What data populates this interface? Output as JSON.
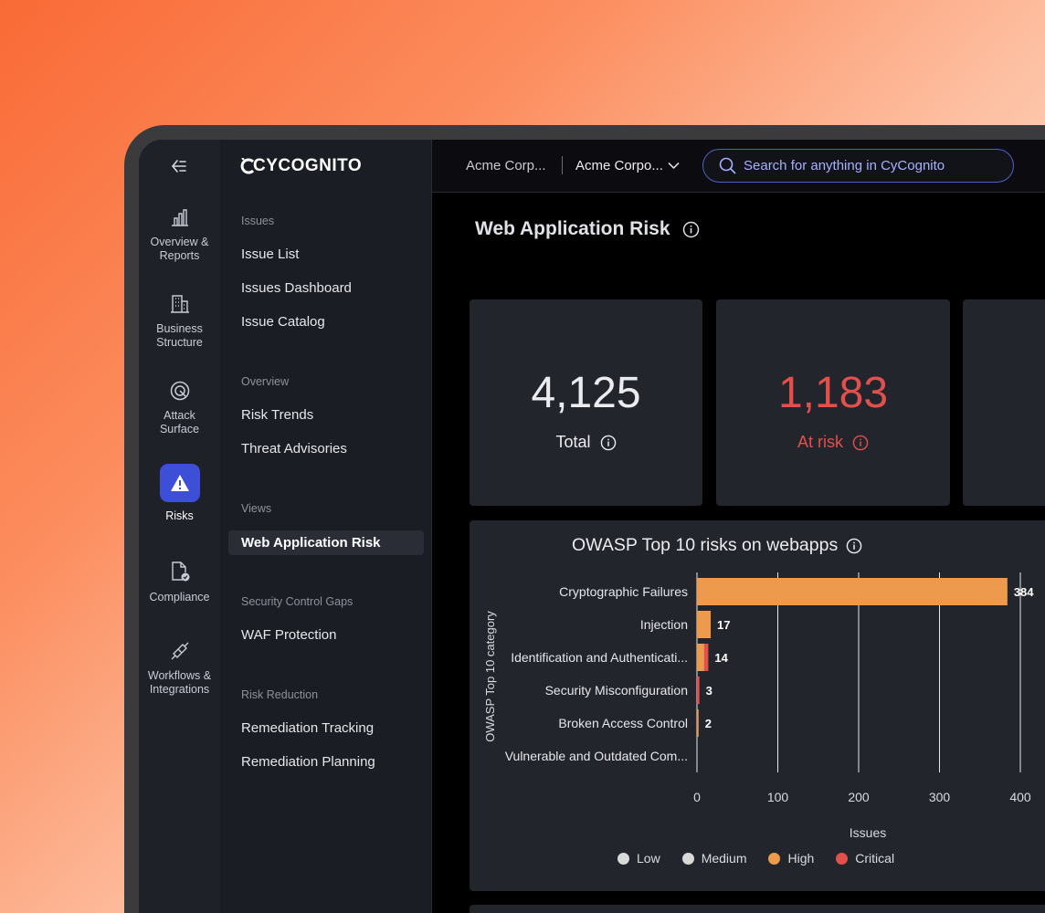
{
  "rail": {
    "items": [
      {
        "label_line1": "Overview &",
        "label_line2": "Reports",
        "icon": "bar-chart-icon"
      },
      {
        "label_line1": "Business",
        "label_line2": "Structure",
        "icon": "building-icon"
      },
      {
        "label_line1": "Attack",
        "label_line2": "Surface",
        "icon": "target-icon"
      },
      {
        "label_line1": "Risks",
        "label_line2": "",
        "icon": "warning-icon"
      },
      {
        "label_line1": "Compliance",
        "label_line2": "",
        "icon": "document-check-icon"
      },
      {
        "label_line1": "Workflows &",
        "label_line2": "Integrations",
        "icon": "plug-icon"
      }
    ]
  },
  "nav": {
    "logo": "CYCOGNITO",
    "sections": [
      {
        "title": "Issues",
        "links": [
          "Issue List",
          "Issues Dashboard",
          "Issue Catalog"
        ]
      },
      {
        "title": "Overview",
        "links": [
          "Risk Trends",
          "Threat Advisories"
        ]
      },
      {
        "title": "Views",
        "links": [
          "Web Application Risk"
        ]
      },
      {
        "title": "Security Control Gaps",
        "links": [
          "WAF Protection"
        ]
      },
      {
        "title": "Risk Reduction",
        "links": [
          "Remediation Tracking",
          "Remediation Planning"
        ]
      }
    ]
  },
  "header": {
    "breadcrumb1": "Acme Corp...",
    "breadcrumb2": "Acme Corpo...",
    "search_placeholder": "Search for anything in CyCognito"
  },
  "page": {
    "title": "Web Application Risk",
    "stats": [
      {
        "value": "4,125",
        "label": "Total"
      },
      {
        "value": "1,183",
        "label": "At risk"
      }
    ]
  },
  "colors": {
    "accent": "#3c4fd6",
    "low": "#d9d9d9",
    "medium": "#d9d9d9",
    "high": "#ee9a4d",
    "critical": "#e2504c"
  },
  "chart_data": {
    "type": "bar",
    "orientation": "horizontal",
    "stacked": true,
    "title": "OWASP Top 10 risks on webapps",
    "xlabel": "Issues",
    "ylabel": "OWASP Top 10 category",
    "categories": [
      "Cryptographic Failures",
      "Injection",
      "Identification and Authenticati...",
      "Security Misconfiguration",
      "Broken Access Control",
      "Vulnerable and Outdated Com..."
    ],
    "series": [
      {
        "name": "Low",
        "values": [
          0,
          0,
          0,
          0,
          0,
          0
        ]
      },
      {
        "name": "Medium",
        "values": [
          0,
          0,
          0,
          0,
          0,
          0
        ]
      },
      {
        "name": "High",
        "values": [
          384,
          17,
          9,
          0,
          2,
          0
        ]
      },
      {
        "name": "Critical",
        "values": [
          0,
          0,
          5,
          3,
          0,
          0
        ]
      }
    ],
    "totals": [
      "384",
      "17",
      "14",
      "3",
      "2",
      ""
    ],
    "xticks": [
      "0",
      "100",
      "200",
      "300",
      "400"
    ],
    "xlim": [
      0,
      400
    ],
    "grid": true,
    "legend": "bottom"
  }
}
